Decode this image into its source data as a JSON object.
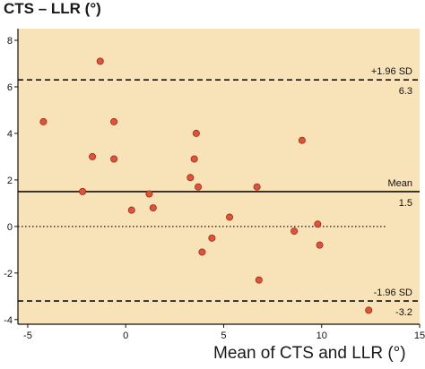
{
  "chart_data": {
    "type": "scatter",
    "title": "",
    "ylabel": "CTS – LLR (°)",
    "xlabel": "Mean of CTS and LLR (°)",
    "xlim": [
      -5.5,
      15
    ],
    "ylim": [
      -4.2,
      8.5
    ],
    "x_ticks": [
      -5,
      0,
      5,
      10,
      15
    ],
    "x_tick_labels": [
      "-5",
      "0",
      "5",
      "10",
      "15"
    ],
    "y_ticks": [
      -4,
      -2,
      0,
      2,
      4,
      6,
      8
    ],
    "y_tick_labels": [
      "-4",
      "-2",
      "0",
      "2",
      "4",
      "6",
      "8"
    ],
    "background_color": "#f8e3b9",
    "point_color": "#e0533a",
    "grid": false,
    "reference_lines": [
      {
        "label": "+1.96 SD",
        "value_label": "6.3",
        "y": 6.3,
        "style": "dashed"
      },
      {
        "label": "Mean",
        "value_label": "1.5",
        "y": 1.5,
        "style": "solid"
      },
      {
        "label": "",
        "value_label": "",
        "y": 0,
        "style": "dotted"
      },
      {
        "label": "-1.96 SD",
        "value_label": "-3.2",
        "y": -3.2,
        "style": "dashed"
      }
    ],
    "points": [
      {
        "x": -4.2,
        "y": 4.5
      },
      {
        "x": -1.3,
        "y": 7.1
      },
      {
        "x": -0.6,
        "y": 4.5
      },
      {
        "x": -1.7,
        "y": 3.0
      },
      {
        "x": -0.6,
        "y": 2.9
      },
      {
        "x": -2.2,
        "y": 1.5
      },
      {
        "x": 0.3,
        "y": 0.7
      },
      {
        "x": 1.2,
        "y": 1.4
      },
      {
        "x": 1.4,
        "y": 0.8
      },
      {
        "x": 3.3,
        "y": 2.1
      },
      {
        "x": 3.5,
        "y": 2.9
      },
      {
        "x": 3.6,
        "y": 4.0
      },
      {
        "x": 3.7,
        "y": 1.7
      },
      {
        "x": 3.9,
        "y": -1.1
      },
      {
        "x": 4.4,
        "y": -0.5
      },
      {
        "x": 5.3,
        "y": 0.4
      },
      {
        "x": 6.7,
        "y": 1.7
      },
      {
        "x": 6.8,
        "y": -2.3
      },
      {
        "x": 8.6,
        "y": -0.2
      },
      {
        "x": 9.0,
        "y": 3.7
      },
      {
        "x": 9.8,
        "y": 0.1
      },
      {
        "x": 9.9,
        "y": -0.8
      },
      {
        "x": 12.4,
        "y": -3.6
      }
    ]
  }
}
